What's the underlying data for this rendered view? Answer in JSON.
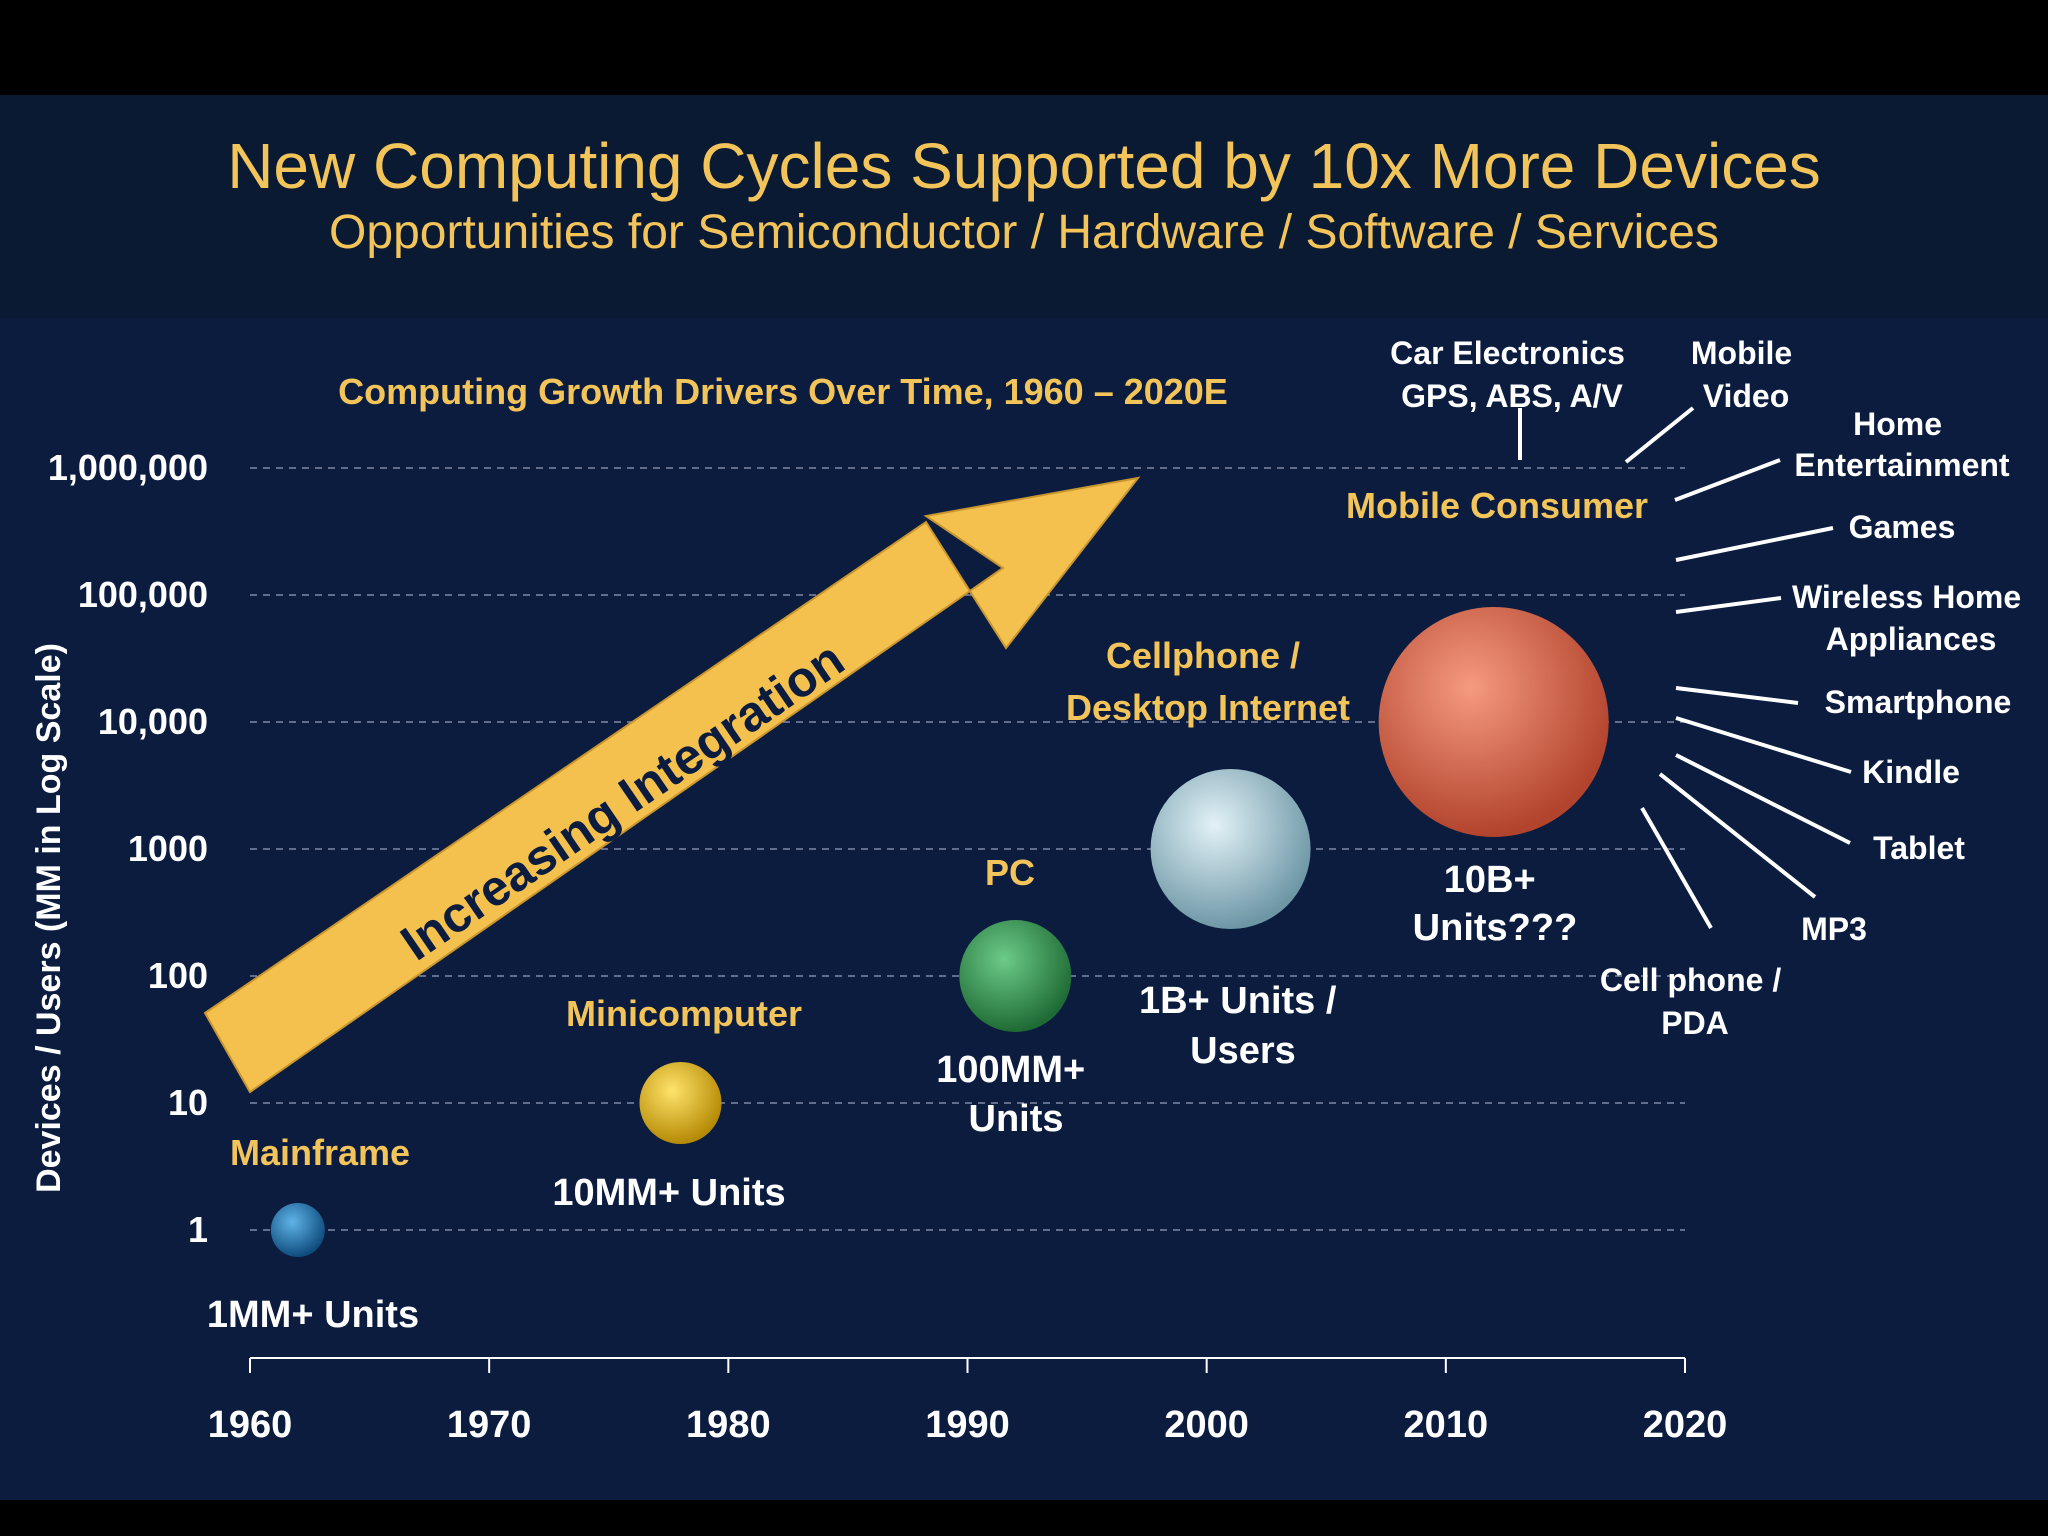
{
  "slide": {
    "title": "New Computing Cycles Supported by 10x More Devices",
    "subtitle": "Opportunities for Semiconductor / Hardware / Software / Services"
  },
  "colors": {
    "gold": "#f2c45a",
    "white": "#ffffff",
    "arrow": "#f4c14f",
    "background": "#0b1c3f",
    "header": "#0a1a33"
  },
  "chart_data": {
    "type": "scatter",
    "title": "Computing Growth Drivers Over Time, 1960 – 2020E",
    "xlabel": "",
    "ylabel": "Devices / Users (MM in Log Scale)",
    "y_scale": "log",
    "xlim": [
      1960,
      2020
    ],
    "ylim": [
      1,
      1000000
    ],
    "x_ticks": [
      "1960",
      "1970",
      "1980",
      "1990",
      "2000",
      "2010",
      "2020"
    ],
    "y_ticks": [
      "1",
      "10",
      "100",
      "1000",
      "10,000",
      "100,000",
      "1,000,000"
    ],
    "grid": true,
    "trend_arrow": {
      "label": "Increasing Integration"
    },
    "bubbles": [
      {
        "name": "Mainframe",
        "x": 1962,
        "y": 1,
        "units_label": "1MM+ Units",
        "color": "#1f6fa8"
      },
      {
        "name": "Minicomputer",
        "x": 1978,
        "y": 10,
        "units_label": "10MM+ Units",
        "color": "#e8b90f"
      },
      {
        "name": "PC",
        "x": 1992,
        "y": 100,
        "units_label": "100MM+ Units",
        "color": "#3f9a59"
      },
      {
        "name": "Cellphone / Desktop Internet",
        "x": 2001,
        "y": 1000,
        "units_label": "1B+ Units / Users",
        "color": "#a9cbd6"
      },
      {
        "name": "Mobile Consumer",
        "x": 2012,
        "y": 10000,
        "units_label": "10B+ Units???",
        "color": "#d86c52"
      }
    ],
    "mobile_consumer_devices": [
      "Car Electronics GPS, ABS, A/V",
      "Mobile Video",
      "Home Entertainment",
      "Games",
      "Wireless Home Appliances",
      "Smartphone",
      "Kindle",
      "Tablet",
      "MP3",
      "Cell phone / PDA"
    ]
  }
}
